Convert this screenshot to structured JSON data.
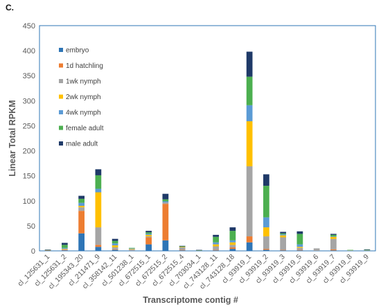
{
  "panel_label": "C.",
  "chart_data": {
    "type": "bar",
    "stacked": true,
    "title": "",
    "xlabel": "Transcriptome contig #",
    "ylabel": "Linear Total RPKM",
    "ylim": [
      0,
      450
    ],
    "yticks": [
      0,
      50,
      100,
      150,
      200,
      250,
      300,
      350,
      400,
      450
    ],
    "grid": false,
    "legend_position": "left-inside",
    "categories": [
      "cl_125631_1",
      "cl_125631_2",
      "cl_195343_20",
      "cl_211471_9",
      "cl_358142_11",
      "cl_501238_1",
      "cl_672515_1",
      "cl_672515_2",
      "cl_672515_4",
      "cl_703034_1",
      "cl_743128_11",
      "cl_743128_18",
      "cl_93919_1",
      "cl_93919_2",
      "cl_93919_3",
      "cl_93919_5",
      "cl_93919_6",
      "cl_93919_7",
      "cl_93919_8",
      "cl_93919_9"
    ],
    "series": [
      {
        "name": "embryo",
        "color": "#2E75B6",
        "values": [
          0.5,
          1,
          35,
          8,
          2,
          0,
          13,
          21,
          1,
          0,
          1,
          4,
          17,
          2,
          1,
          1,
          0,
          1,
          0,
          0
        ]
      },
      {
        "name": "1d hatchling",
        "color": "#ED7D31",
        "values": [
          0.5,
          1,
          45,
          4,
          1,
          0,
          14,
          73,
          1,
          0,
          1,
          3,
          12,
          2,
          1,
          1,
          0,
          2,
          0,
          0
        ]
      },
      {
        "name": "1wk nymph",
        "color": "#A5A5A5",
        "values": [
          0.5,
          1,
          7,
          35,
          4,
          3,
          2,
          3,
          5,
          1,
          7,
          5,
          140,
          25,
          25,
          4,
          5,
          21,
          1,
          1
        ]
      },
      {
        "name": "2wk nymph",
        "color": "#FFC000",
        "values": [
          0,
          1,
          3,
          70,
          4,
          1,
          3,
          0,
          1,
          0,
          4,
          5,
          90,
          18,
          4,
          2,
          0,
          4,
          0,
          0
        ]
      },
      {
        "name": "4wk nymph",
        "color": "#5B9BD5",
        "values": [
          0,
          2,
          6,
          7,
          4,
          1,
          2,
          2,
          0,
          0,
          4,
          4,
          32,
          20,
          2,
          5,
          0,
          1,
          0,
          0
        ]
      },
      {
        "name": "female adult",
        "color": "#4CAF50",
        "values": [
          0.5,
          6,
          8,
          27,
          5,
          1,
          3,
          4,
          1,
          0.5,
          11,
          19,
          57,
          63,
          2,
          21,
          0,
          3,
          1,
          1
        ]
      },
      {
        "name": "male adult",
        "color": "#1F3A68",
        "values": [
          0.5,
          4,
          6,
          12,
          4,
          0,
          3,
          11,
          1,
          0.5,
          4,
          7,
          50,
          23,
          3,
          5,
          0,
          2,
          0,
          1
        ]
      }
    ]
  }
}
